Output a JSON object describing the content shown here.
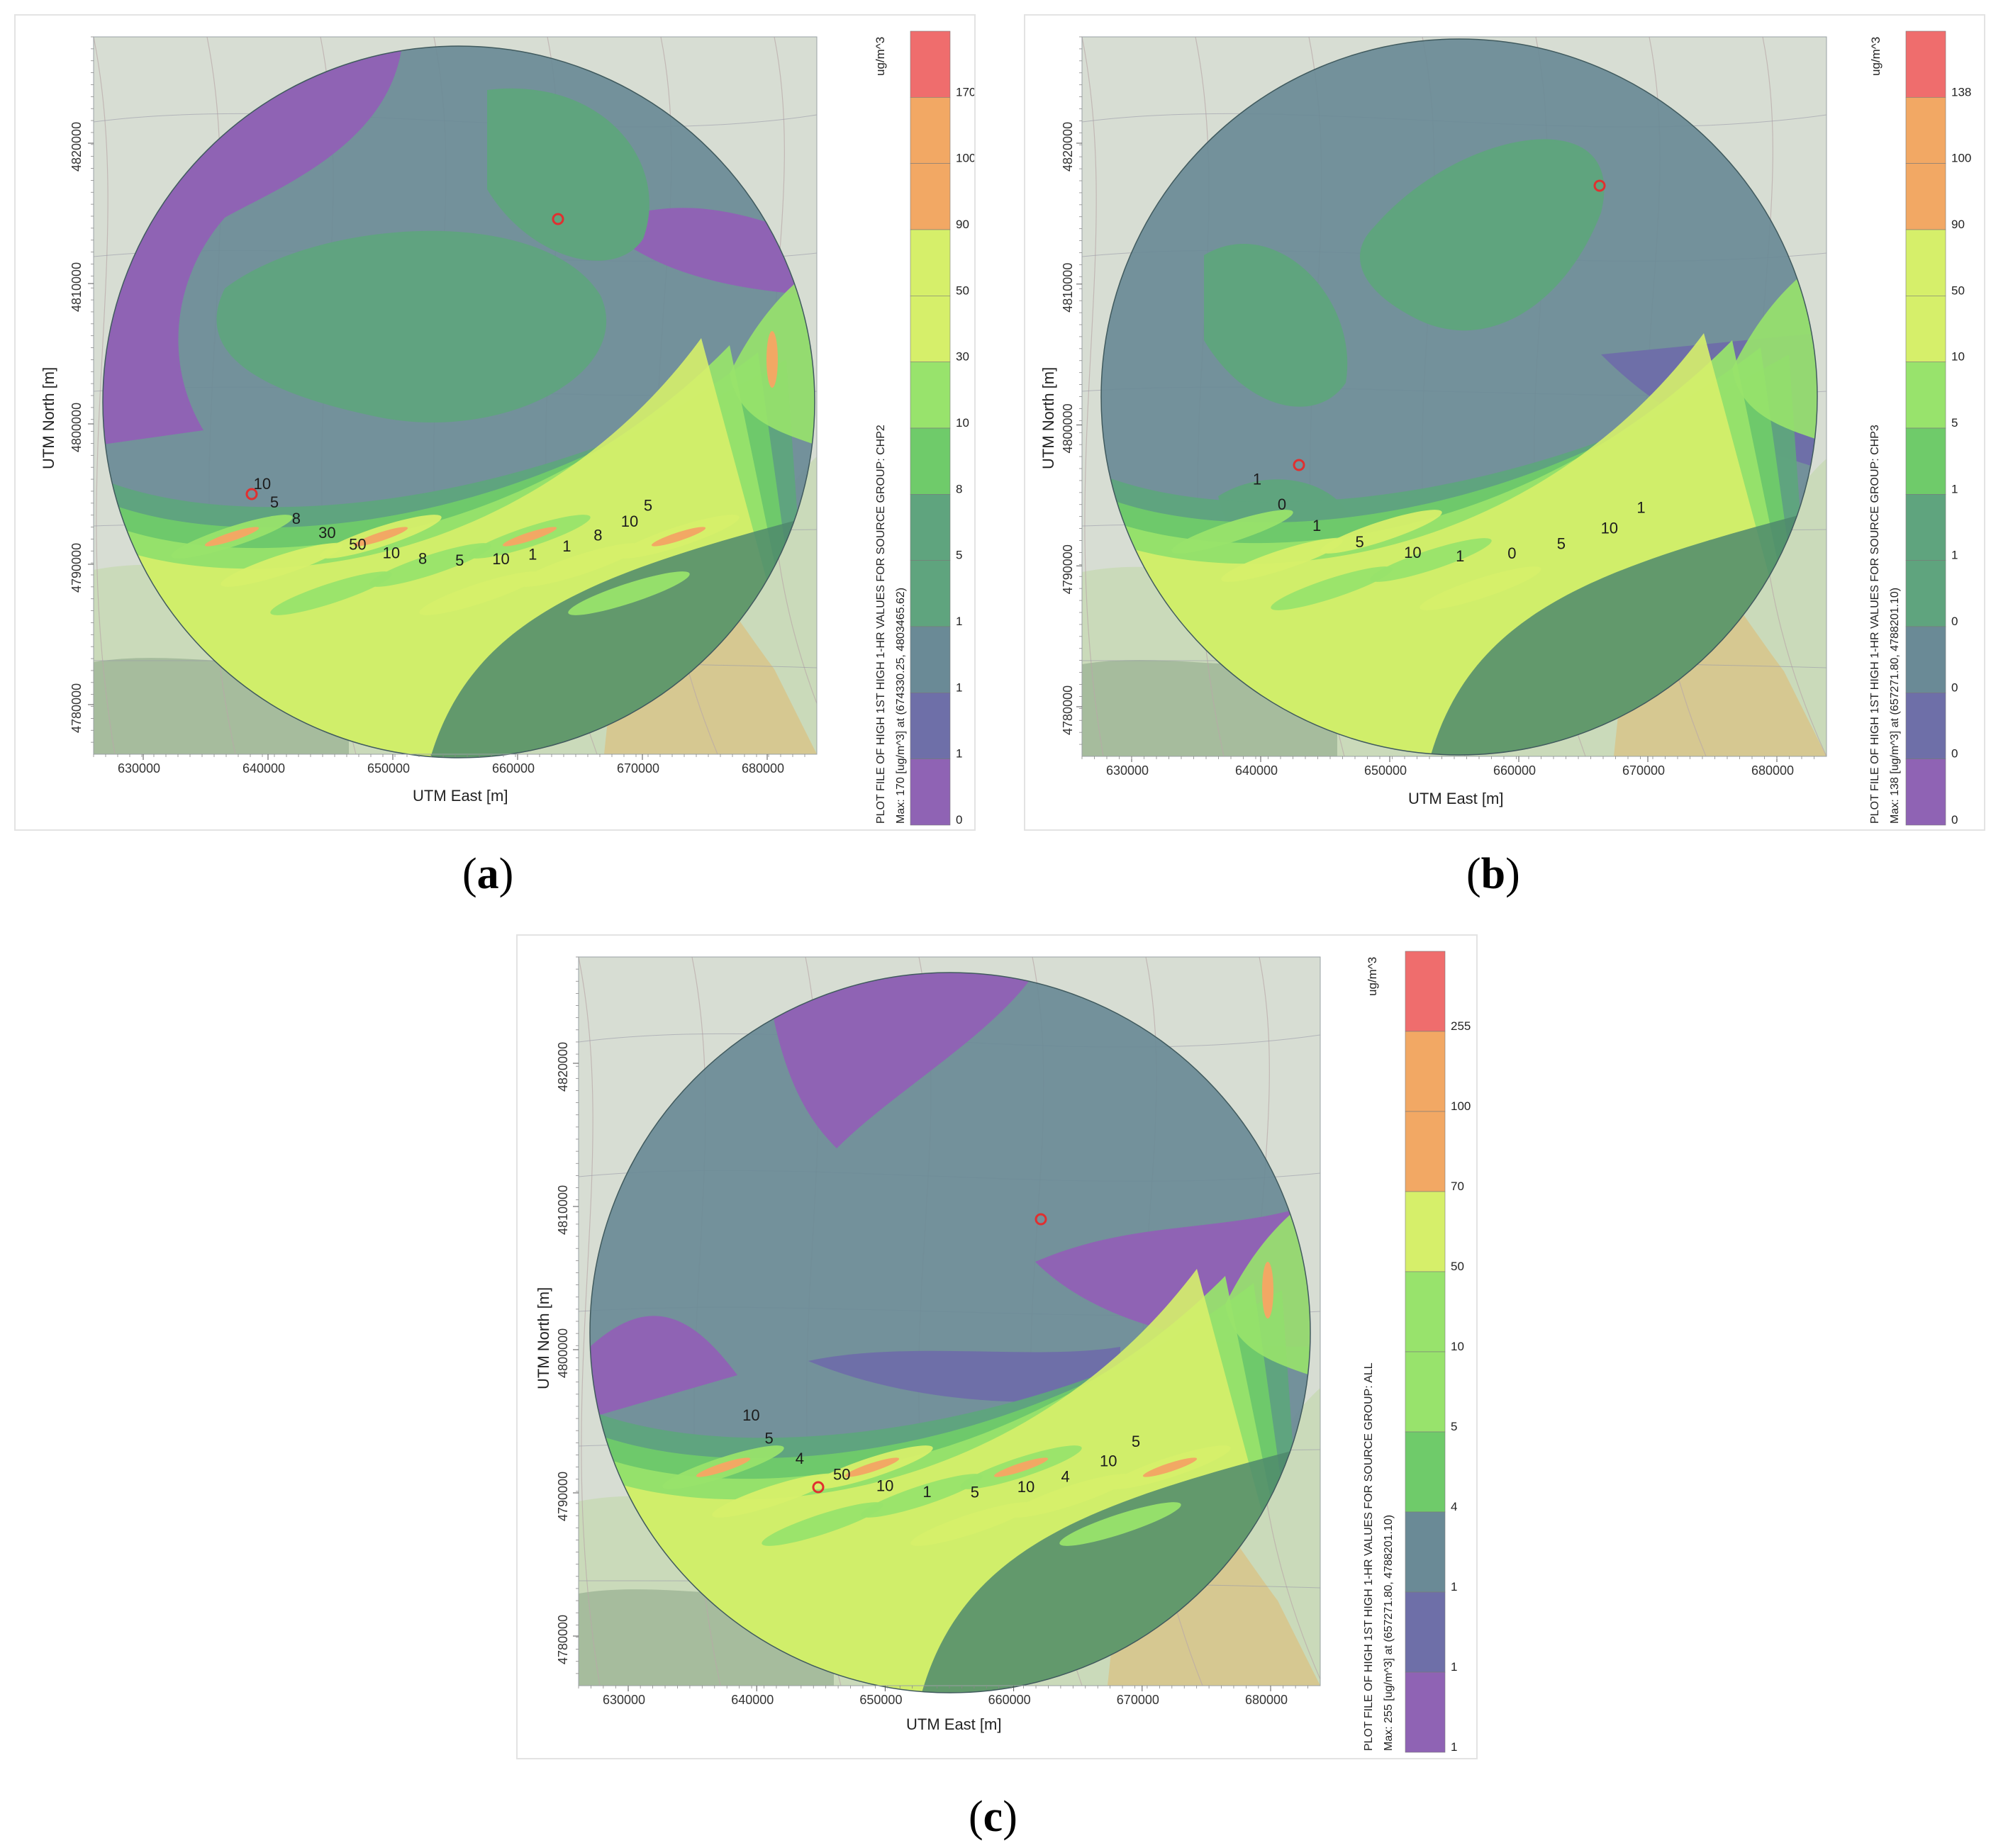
{
  "colors": {
    "purple": "#8f63b4",
    "slate_blue": "#6e6fa8",
    "slate": "#6a8a96",
    "sea_green": "#5fa47e",
    "green": "#6fcb6a",
    "light_green": "#98e36c",
    "yellow_green": "#d6ef6a",
    "orange": "#f2a864",
    "red": "#ef6d6d",
    "basemap": "#d7ddd3",
    "terrain": "#c9d9b7"
  },
  "panels": [
    {
      "id": "a",
      "caption_letter": "a",
      "plot_title": "PLOT FILE OF HIGH 1ST HIGH 1-HR VALUES FOR SOURCE GROUP: CHP2",
      "max_text": "Max:  170  [ug/m^3]  at  (674330.25, 4803465.62)",
      "x_axis_title": "UTM East [m]",
      "y_axis_title": "UTM North [m]",
      "x_ticks": [
        "630000",
        "640000",
        "650000",
        "660000",
        "670000",
        "680000"
      ],
      "y_ticks": [
        "4780000",
        "4790000",
        "4800000",
        "4810000",
        "4820000"
      ],
      "legend_unit": "ug/m^3",
      "legend_levels": [
        "0",
        "1",
        "1",
        "1",
        "5",
        "8",
        "10",
        "30",
        "50",
        "90",
        "100",
        "170"
      ],
      "contour_labels": [
        "10",
        "5",
        "8",
        "30",
        "50",
        "10",
        "8",
        "5",
        "10",
        "1",
        "1",
        "8",
        "10",
        "5"
      ]
    },
    {
      "id": "b",
      "caption_letter": "b",
      "plot_title": "PLOT FILE OF HIGH 1ST HIGH 1-HR VALUES FOR SOURCE GROUP: CHP3",
      "max_text": "Max:  138  [ug/m^3]  at  (657271.80, 4788201.10)",
      "x_axis_title": "UTM East [m]",
      "y_axis_title": "UTM North [m]",
      "x_ticks": [
        "630000",
        "640000",
        "650000",
        "660000",
        "670000",
        "680000"
      ],
      "y_ticks": [
        "4780000",
        "4790000",
        "4800000",
        "4810000",
        "4820000"
      ],
      "legend_unit": "ug/m^3",
      "legend_levels": [
        "0",
        "0",
        "0",
        "0",
        "1",
        "1",
        "5",
        "10",
        "50",
        "90",
        "100",
        "138"
      ],
      "contour_labels": [
        "1",
        "0",
        "1",
        "5",
        "10",
        "1",
        "0",
        "5",
        "10",
        "1"
      ]
    },
    {
      "id": "c",
      "caption_letter": "c",
      "plot_title": "PLOT FILE OF HIGH 1ST HIGH 1-HR VALUES FOR SOURCE GROUP: ALL",
      "max_text": "Max:  255  [ug/m^3]  at  (657271.80, 4788201.10)",
      "x_axis_title": "UTM East [m]",
      "y_axis_title": "UTM North [m]",
      "x_ticks": [
        "630000",
        "640000",
        "650000",
        "660000",
        "670000",
        "680000"
      ],
      "y_ticks": [
        "4780000",
        "4790000",
        "4800000",
        "4810000",
        "4820000"
      ],
      "legend_unit": "ug/m^3",
      "legend_levels": [
        "1",
        "1",
        "1",
        "4",
        "5",
        "10",
        "50",
        "70",
        "100",
        "255"
      ],
      "contour_labels": [
        "10",
        "5",
        "4",
        "50",
        "10",
        "1",
        "5",
        "10",
        "4",
        "10",
        "5"
      ]
    }
  ]
}
